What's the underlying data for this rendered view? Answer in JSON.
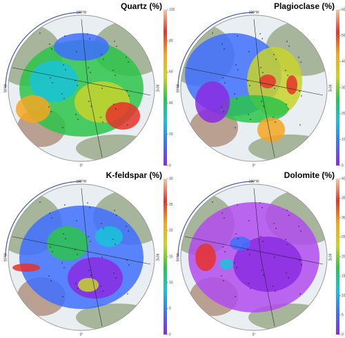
{
  "graticule_labels": {
    "top": "180°W",
    "left": "90°W",
    "right": "90°E",
    "bottom": "0°"
  },
  "colorbar_colors": [
    "#8a2be2",
    "#3f6fff",
    "#19c3d9",
    "#2bc44a",
    "#c8d42a",
    "#f5a623",
    "#e8312a",
    "#f4c7a1"
  ],
  "panels": [
    {
      "title": "Quartz (%)",
      "colorbar": {
        "lim": [
          0,
          100
        ],
        "ticks": [
          0,
          20,
          40,
          60,
          80,
          100
        ]
      }
    },
    {
      "title": "Plagioclase (%)",
      "colorbar": {
        "lim": [
          0,
          60
        ],
        "ticks": [
          0,
          10,
          20,
          30,
          40,
          50,
          60
        ]
      }
    },
    {
      "title": "K-feldspar (%)",
      "colorbar": {
        "lim": [
          0,
          30
        ],
        "ticks": [
          0,
          5,
          10,
          15,
          20,
          25,
          30
        ]
      }
    },
    {
      "title": "Dolomite (%)",
      "colorbar": {
        "lim": [
          0,
          40
        ],
        "ticks": [
          0,
          5,
          10,
          15,
          20,
          25,
          30,
          35,
          40
        ]
      }
    }
  ]
}
